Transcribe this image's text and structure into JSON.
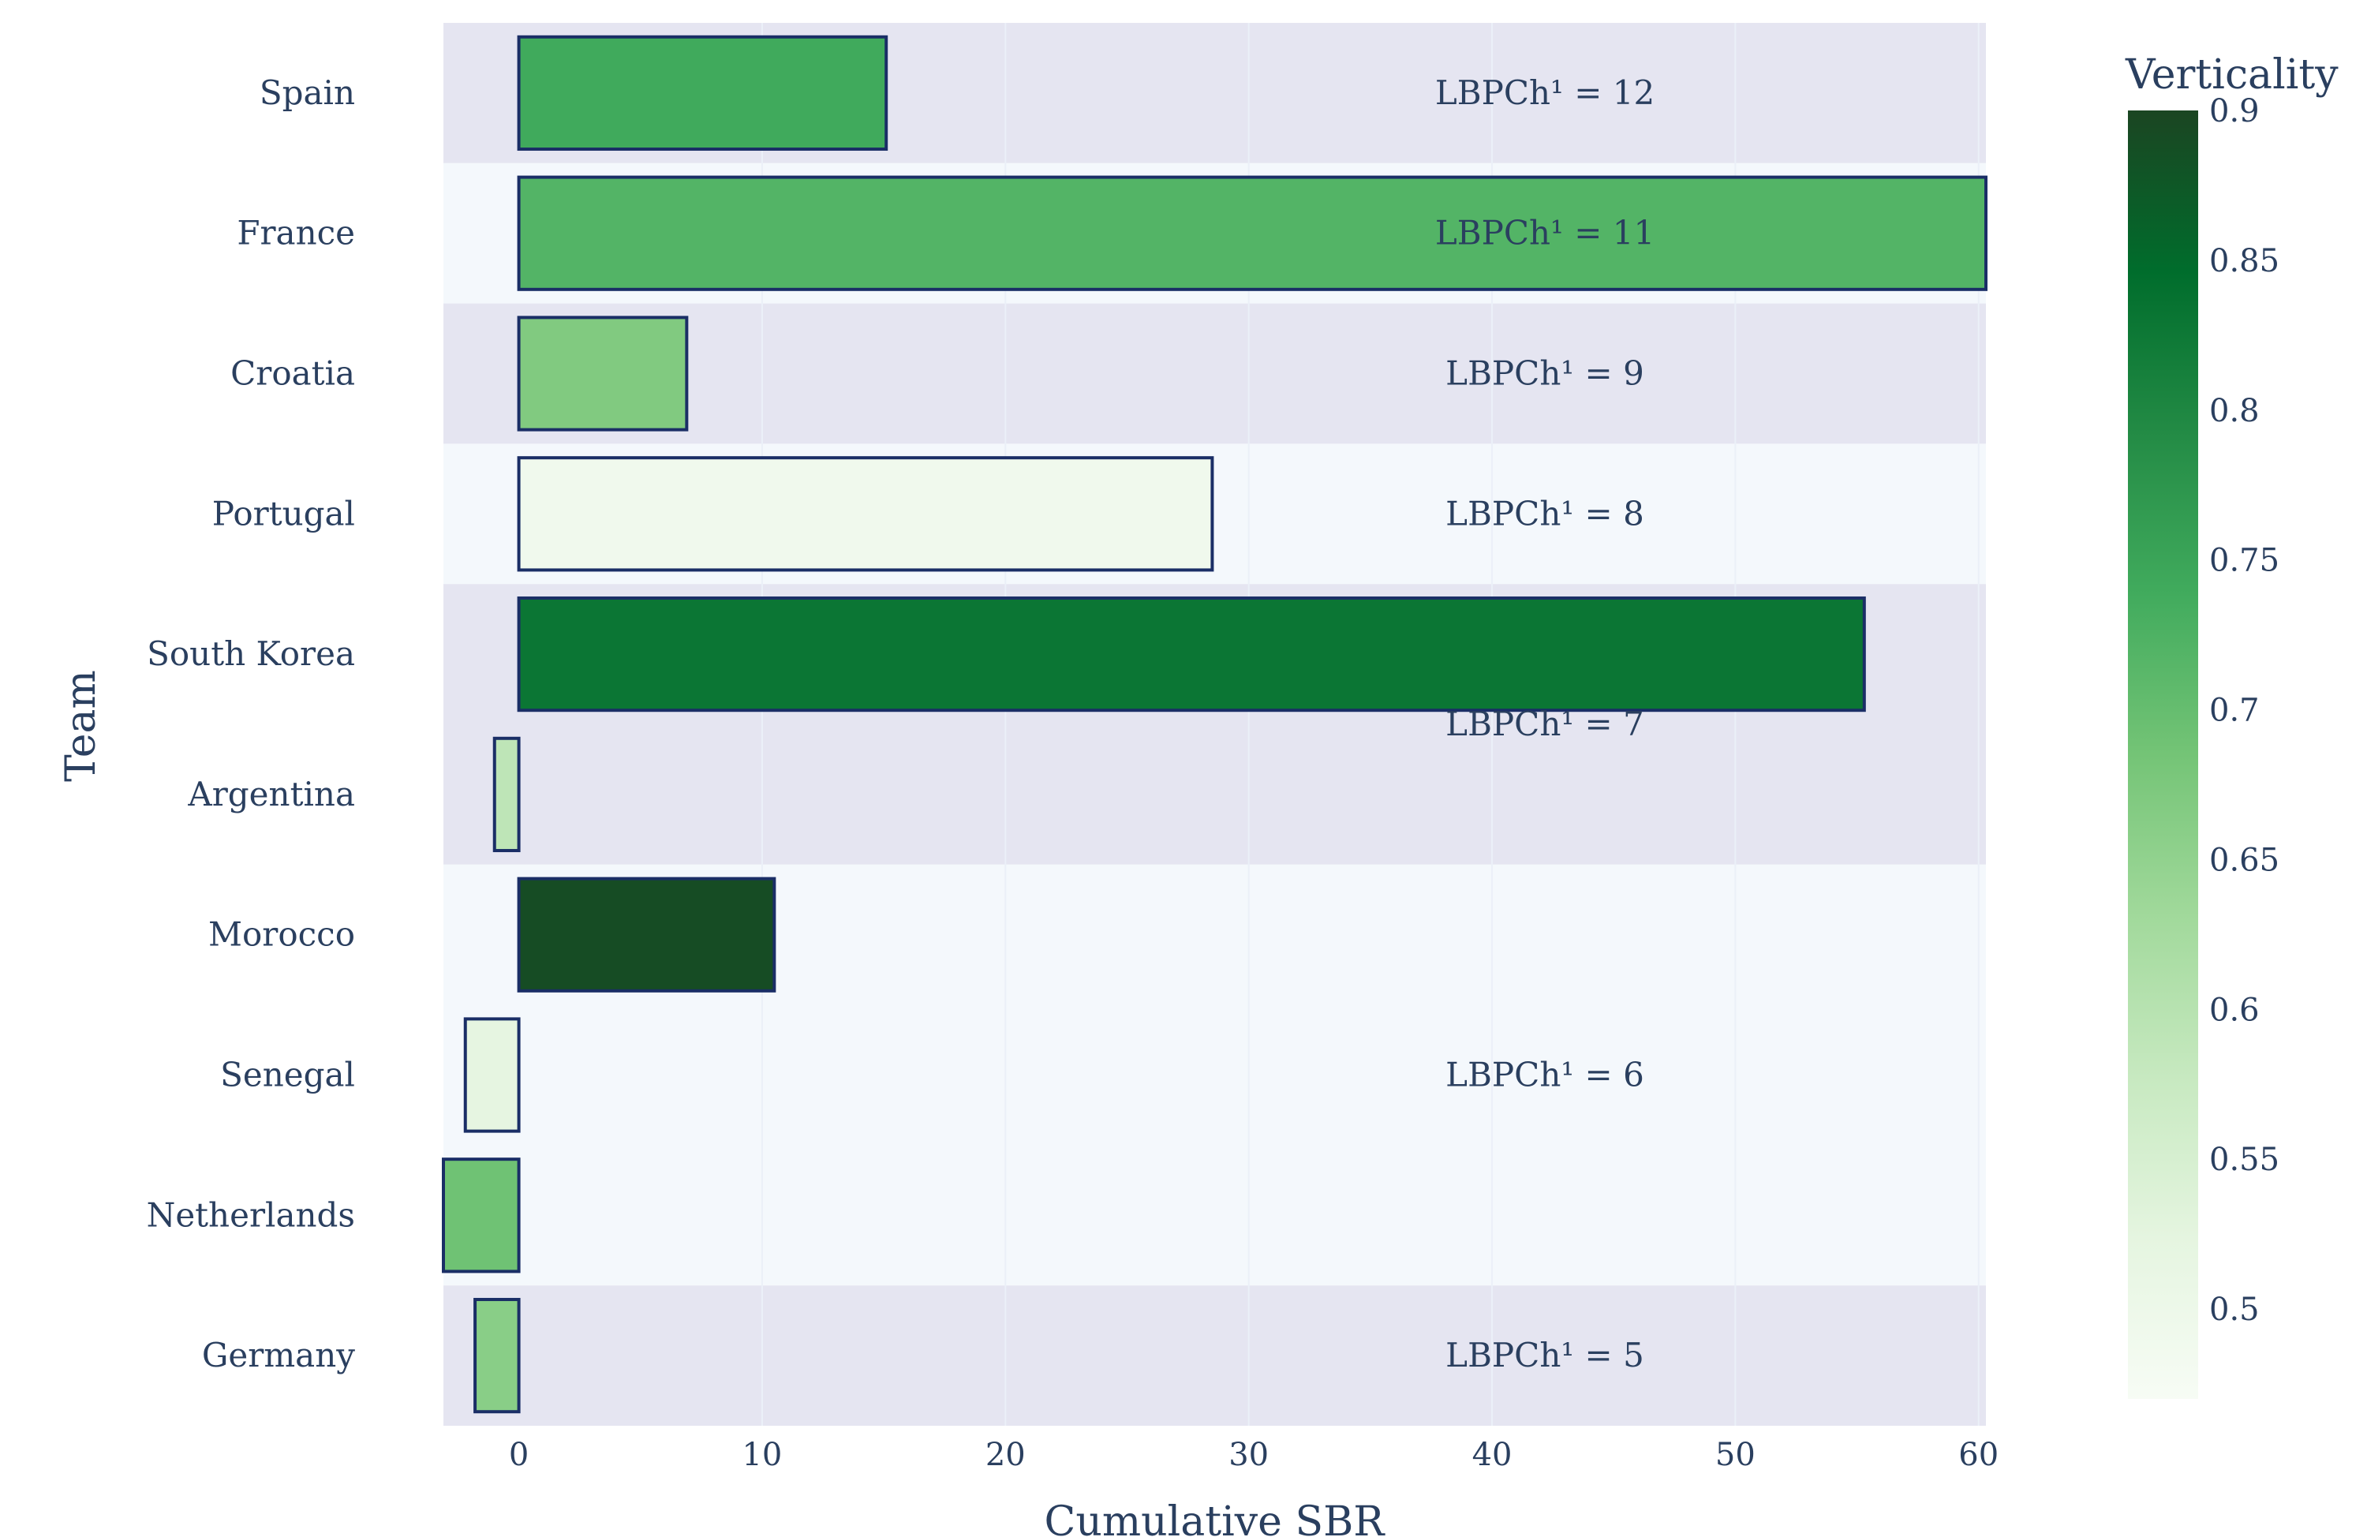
{
  "chart_data": {
    "type": "bar",
    "orientation": "horizontal",
    "xlabel": "Cumulative SBR",
    "ylabel": "Team",
    "xlim": [
      -3.1,
      60.3
    ],
    "xticks": [
      0,
      10,
      20,
      30,
      40,
      50,
      60
    ],
    "grid": true,
    "categories": [
      "Spain",
      "France",
      "Croatia",
      "Portugal",
      "South Korea",
      "Argentina",
      "Morocco",
      "Senegal",
      "Netherlands",
      "Germany"
    ],
    "values": [
      15.1,
      60.3,
      6.9,
      28.5,
      55.3,
      -1.0,
      10.5,
      -2.2,
      -3.1,
      -1.8
    ],
    "verticality": [
      0.74,
      0.72,
      0.67,
      0.49,
      0.83,
      0.59,
      0.89,
      0.52,
      0.69,
      0.66
    ],
    "colorscale": {
      "title": "Verticality",
      "name": "Greens",
      "min": 0.47,
      "max": 0.9,
      "ticks": [
        0.5,
        0.55,
        0.6,
        0.65,
        0.7,
        0.75,
        0.8,
        0.85,
        0.9
      ]
    },
    "bands": [
      {
        "label": "LBPCh¹ = 12",
        "from": 0,
        "to": 0,
        "shade": "dark"
      },
      {
        "label": "LBPCh¹ = 11",
        "from": 1,
        "to": 1,
        "shade": "light"
      },
      {
        "label": "LBPCh¹ = 9",
        "from": 2,
        "to": 2,
        "shade": "dark"
      },
      {
        "label": "LBPCh¹ = 8",
        "from": 3,
        "to": 3,
        "shade": "light"
      },
      {
        "label": "LBPCh¹ = 7",
        "from": 4,
        "to": 5,
        "shade": "dark"
      },
      {
        "label": "LBPCh¹ = 6",
        "from": 6,
        "to": 8,
        "shade": "light"
      },
      {
        "label": "LBPCh¹ = 5",
        "from": 9,
        "to": 9,
        "shade": "dark"
      }
    ]
  },
  "colors": {
    "band_dark": "#e5e5f1",
    "band_light": "#f4f8fc",
    "bar_outline": "#1a2e66",
    "text": "#2a3f5f",
    "grid": "#ebf0f8"
  }
}
